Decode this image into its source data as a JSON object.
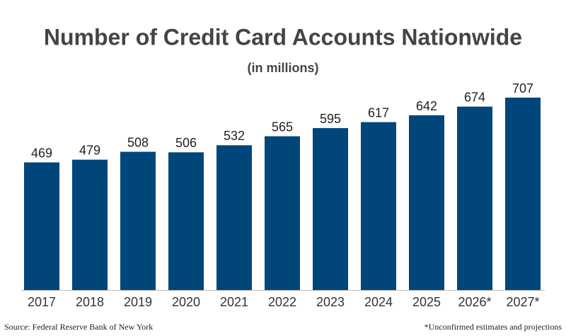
{
  "chart_data": {
    "type": "bar",
    "title": "Number of Credit Card Accounts Nationwide",
    "subtitle": "(in millions)",
    "categories": [
      "2017",
      "2018",
      "2019",
      "2020",
      "2021",
      "2022",
      "2023",
      "2024",
      "2025",
      "2026*",
      "2027*"
    ],
    "values": [
      469,
      479,
      508,
      506,
      532,
      565,
      595,
      617,
      642,
      674,
      707
    ],
    "color": "#00467a",
    "source": "Source: Federal Reserve Bank of New York",
    "note": "*Unconfirmed estimates and projections"
  }
}
